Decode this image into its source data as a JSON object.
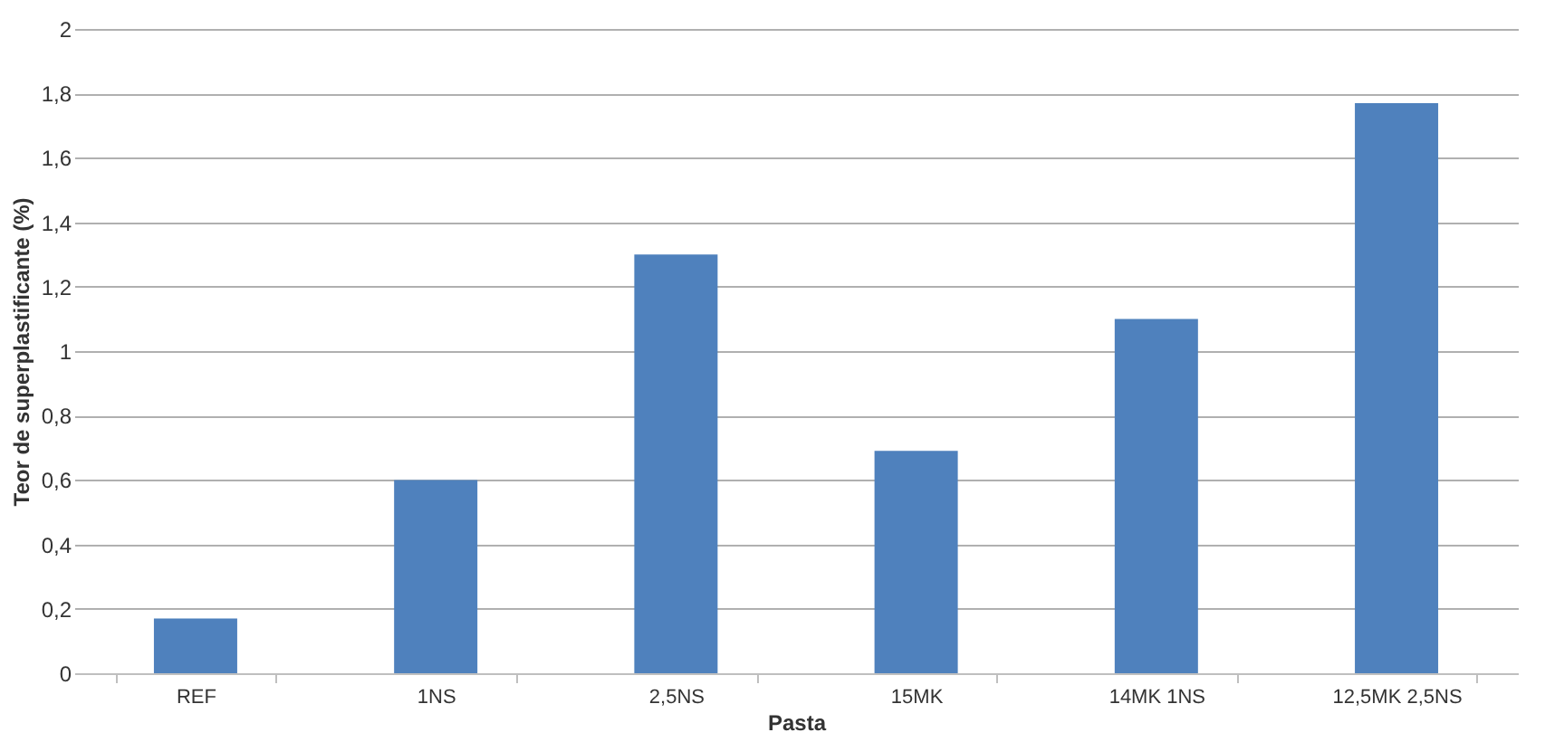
{
  "chart_data": {
    "type": "bar",
    "xlabel": "Pasta",
    "ylabel": "Teor de superplastificante (%)",
    "categories": [
      "REF",
      "1NS",
      "2,5NS",
      "15MK",
      "14MK 1NS",
      "12,5MK 2,5NS"
    ],
    "values": [
      0.17,
      0.6,
      1.3,
      0.69,
      1.1,
      1.77
    ],
    "color": "#4f81bd",
    "ylim": [
      0,
      2
    ],
    "yticks": [
      0,
      {
        "value": 0.2,
        "label": "0,2"
      },
      {
        "value": 0.4,
        "label": "0,4"
      },
      {
        "value": 0.6,
        "label": "0,6"
      },
      {
        "value": 0.8,
        "label": "0,8"
      },
      1,
      {
        "value": 1.2,
        "label": "1,2"
      },
      {
        "value": 1.4,
        "label": "1,4"
      },
      {
        "value": 1.6,
        "label": "1,6"
      },
      {
        "value": 1.8,
        "label": "1,8"
      },
      2
    ],
    "grid": "y"
  }
}
